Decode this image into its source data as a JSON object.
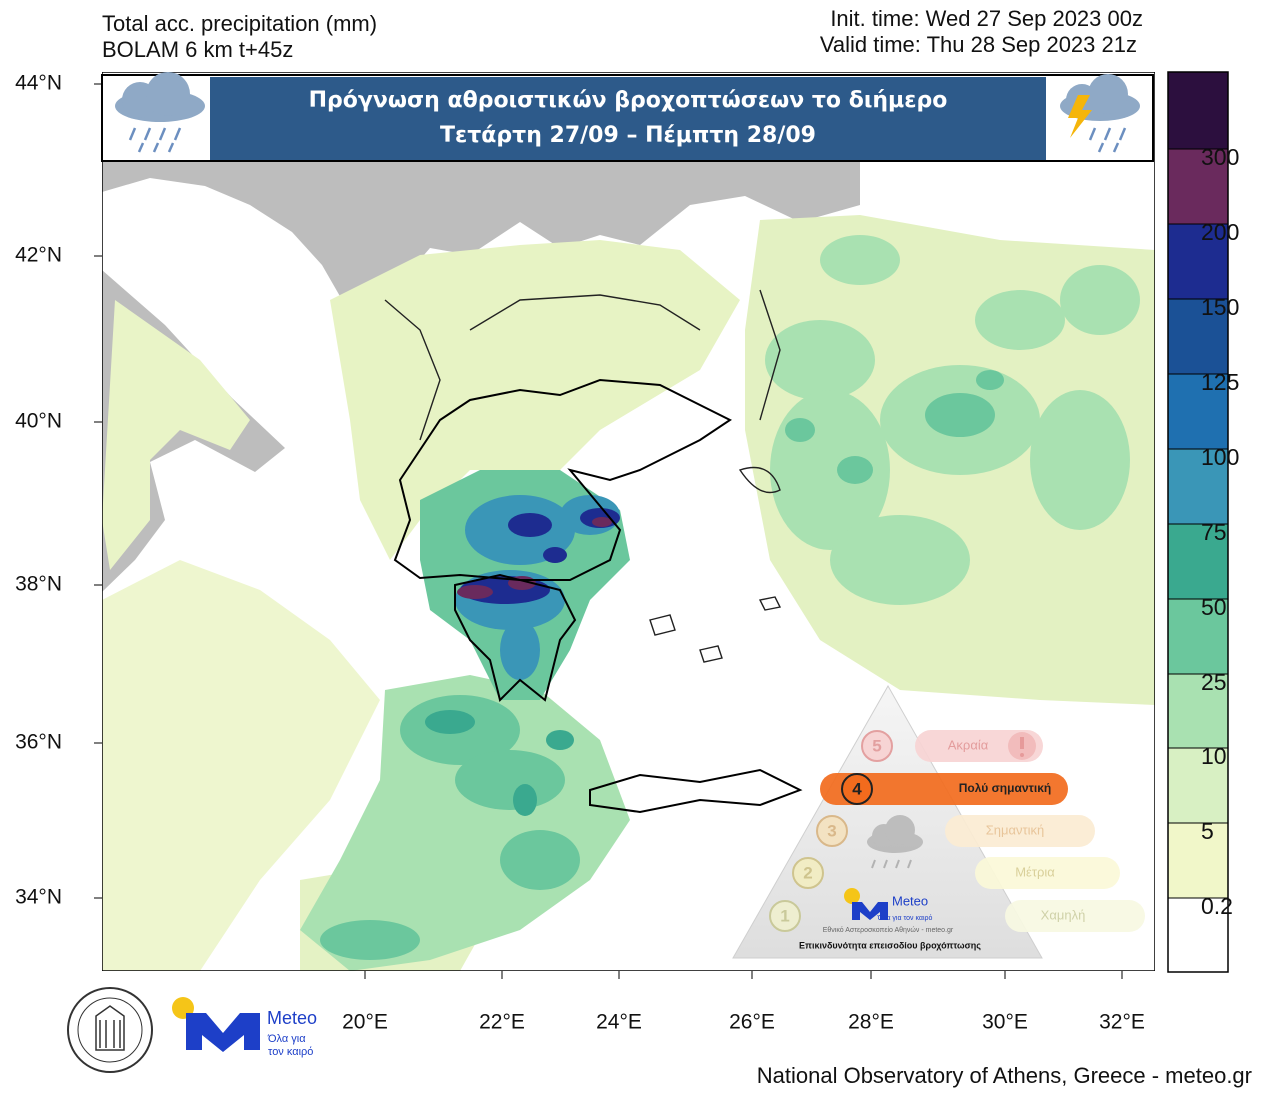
{
  "header": {
    "title": "Total acc. precipitation (mm)",
    "model": "BOLAM 6 km t+45z",
    "init_time": "Init. time: Wed 27 Sep 2023 00z",
    "valid_time": "Valid time: Thu 28 Sep 2023 21z"
  },
  "banner": {
    "line1": "Πρόγνωση αθροιστικών βροχοπτώσεων το διήμερο",
    "line2": "Τετάρτη 27/09 – Πέμπτη 28/09"
  },
  "map": {
    "lat_labels": [
      "44°N",
      "42°N",
      "40°N",
      "38°N",
      "36°N",
      "34°N"
    ],
    "lon_labels": [
      "20°E",
      "22°E",
      "24°E",
      "26°E",
      "28°E",
      "30°E",
      "32°E"
    ]
  },
  "colorbar": {
    "labels": [
      "0.2",
      "5",
      "10",
      "25",
      "50",
      "75",
      "100",
      "125",
      "150",
      "200",
      "300"
    ],
    "colors": [
      "#ffffff",
      "#f1f7c9",
      "#d8f0c3",
      "#a9e1b1",
      "#6bc79d",
      "#3aa98f",
      "#3a96b7",
      "#1f70b0",
      "#1b5196",
      "#1d2c90",
      "#6a2a5d",
      "#2c0f3e"
    ]
  },
  "risk_scale": {
    "levels": [
      {
        "number": "5",
        "label": "Ακραία"
      },
      {
        "number": "4",
        "label": "Πολύ σημαντική"
      },
      {
        "number": "3",
        "label": "Σημαντική"
      },
      {
        "number": "2",
        "label": "Μέτρια"
      },
      {
        "number": "1",
        "label": "Χαμηλή"
      }
    ],
    "logo": "Meteo",
    "logo_tagline": "Όλα για τον καιρό",
    "credit": "Εθνικό Αστεροσκοπείο Αθηνών - meteo.gr",
    "title": "Επικινδυνότητα επεισοδίου βροχόπτωσης"
  },
  "logo": {
    "name": "Meteo",
    "tagline_line1": "Όλα για",
    "tagline_line2": "τον καιρό"
  },
  "footer": "National Observatory of Athens, Greece - meteo.gr"
}
